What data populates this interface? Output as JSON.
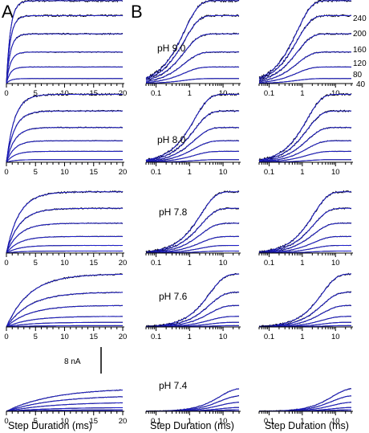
{
  "panels": {
    "a_label": "A",
    "b_label": "B"
  },
  "scale_bar": {
    "label": "8 nA",
    "value_nA": 8
  },
  "voltages": [
    "240",
    "200",
    "160",
    "120",
    "80",
    "40"
  ],
  "ph_labels": [
    "pH 9.0",
    "pH 8.0",
    "pH 7.8",
    "pH 7.6",
    "pH 7.4"
  ],
  "x_title": "Step Duration  (ms)",
  "colors": {
    "data": "#000000",
    "fit": "#1f1fcc"
  },
  "chart_data": [
    {
      "type": "line",
      "panel": "A",
      "xscale": "linear",
      "x_ticks": [
        0,
        5,
        10,
        15,
        20
      ],
      "xlim": [
        0,
        20
      ],
      "xlabel": "Step Duration  (ms)",
      "rows": [
        {
          "ph": "pH 9.0",
          "amplitudes_nA": [
            25.0,
            20.5,
            15.0,
            9.5,
            5.0,
            1.5
          ],
          "tau_ms": 0.7
        },
        {
          "ph": "pH 8.0",
          "amplitudes_nA": [
            20.5,
            15.5,
            10.5,
            6.5,
            3.3,
            0.8
          ],
          "tau_ms": 1.4
        },
        {
          "ph": "pH 7.8",
          "amplitudes_nA": [
            18.5,
            13.5,
            9.0,
            5.0,
            2.3,
            0.6
          ],
          "tau_ms": 2.2
        },
        {
          "ph": "pH 7.6",
          "amplitudes_nA": [
            16.0,
            10.5,
            6.5,
            3.2,
            1.4,
            0.4
          ],
          "tau_ms": 4.0
        },
        {
          "ph": "pH 7.4",
          "amplitudes_nA": [
            7.0,
            4.8,
            2.8,
            1.2,
            0.5,
            0.1
          ],
          "tau_ms": 8.0
        }
      ]
    },
    {
      "type": "line",
      "panel": "B",
      "xscale": "log",
      "x_ticks": [
        0.1,
        1,
        10
      ],
      "xlim": [
        0.05,
        30
      ],
      "xlabel": "Step Duration  (ms)",
      "columns": 2,
      "rows": [
        {
          "ph": "pH 9.0",
          "amplitudes_nA": [
            25.0,
            20.5,
            15.0,
            9.5,
            5.0,
            1.5
          ],
          "tau_ms": 0.7
        },
        {
          "ph": "pH 8.0",
          "amplitudes_nA": [
            20.5,
            15.5,
            10.5,
            6.5,
            3.3,
            0.8
          ],
          "tau_ms": 1.4
        },
        {
          "ph": "pH 7.8",
          "amplitudes_nA": [
            18.5,
            13.5,
            9.0,
            5.0,
            2.3,
            0.6
          ],
          "tau_ms": 2.2
        },
        {
          "ph": "pH 7.6",
          "amplitudes_nA": [
            16.0,
            10.5,
            6.5,
            3.2,
            1.4,
            0.4
          ],
          "tau_ms": 4.0
        },
        {
          "ph": "pH 7.4",
          "amplitudes_nA": [
            7.0,
            4.8,
            2.8,
            1.2,
            0.5,
            0.1
          ],
          "tau_ms": 8.0
        }
      ]
    }
  ]
}
